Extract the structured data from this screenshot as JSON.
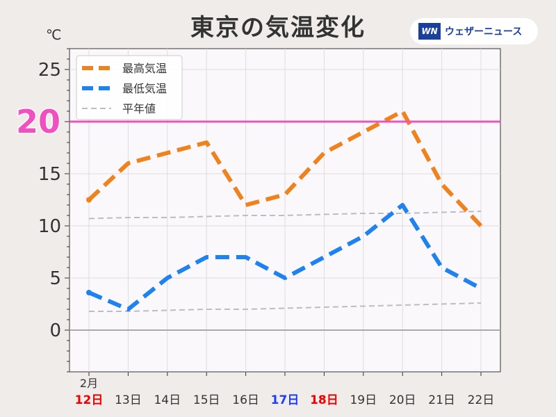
{
  "title": "東京の気温変化",
  "brand": {
    "mark": "WN",
    "name": "ウェザーニュース"
  },
  "colors": {
    "max": "#f0821e",
    "min": "#1e82f0",
    "normal": "#bdbdbd",
    "highlight": "#f050c0",
    "saturday": "#1e3cff",
    "sunday": "#f00000"
  },
  "chart_data": {
    "type": "line",
    "unit": "℃",
    "month_label": "2月",
    "categories": [
      "12日",
      "13日",
      "14日",
      "15日",
      "16日",
      "17日",
      "18日",
      "19日",
      "20日",
      "21日",
      "22日"
    ],
    "category_colors": [
      "sunday",
      "default",
      "default",
      "default",
      "default",
      "saturday",
      "sunday",
      "default",
      "default",
      "default",
      "default"
    ],
    "ylim": [
      -4,
      27
    ],
    "yticks": [
      0,
      5,
      10,
      15,
      20,
      25
    ],
    "grid": true,
    "legend_position": "top-left",
    "highlight_line": {
      "value": 20,
      "label": "20"
    },
    "series": [
      {
        "name": "最高気温",
        "color_key": "max",
        "style": "dashed-thick",
        "values": [
          12.5,
          16,
          17,
          18,
          12,
          13,
          17,
          19,
          21,
          14,
          10
        ]
      },
      {
        "name": "最低気温",
        "color_key": "min",
        "style": "dashed-thick",
        "values": [
          3.6,
          2,
          5,
          7,
          7,
          5,
          7,
          9,
          12,
          6,
          4
        ]
      },
      {
        "name": "平年値",
        "color_key": "normal",
        "style": "dashed-thin",
        "values": [
          10.7,
          10.8,
          10.8,
          10.9,
          11.0,
          11.0,
          11.1,
          11.2,
          11.2,
          11.3,
          11.4
        ]
      },
      {
        "name": "",
        "color_key": "normal",
        "style": "dashed-thin",
        "values": [
          1.8,
          1.8,
          1.9,
          2.0,
          2.0,
          2.1,
          2.2,
          2.3,
          2.4,
          2.5,
          2.6
        ]
      }
    ]
  }
}
